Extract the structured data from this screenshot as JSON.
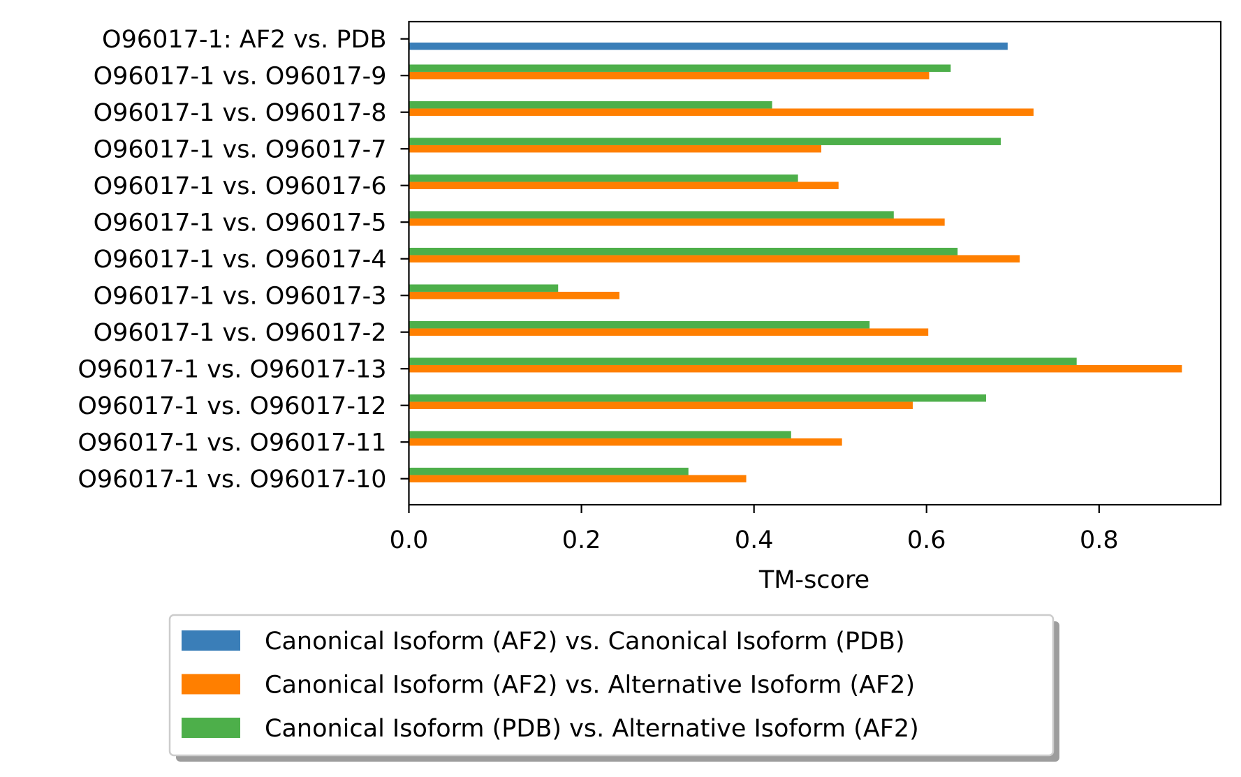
{
  "chart_data": {
    "type": "bar",
    "orientation": "horizontal",
    "title": "",
    "xlabel": "TM-score",
    "ylabel": "",
    "xlim": [
      0,
      0.941
    ],
    "xticks": [
      0.0,
      0.2,
      0.4,
      0.6,
      0.8
    ],
    "xtick_labels": [
      "0.0",
      "0.2",
      "0.4",
      "0.6",
      "0.8"
    ],
    "grid": false,
    "legend_placement": "below-center",
    "categories": [
      "O96017-1: AF2 vs. PDB",
      "O96017-1 vs. O96017-9",
      "O96017-1 vs. O96017-8",
      "O96017-1 vs. O96017-7",
      "O96017-1 vs. O96017-6",
      "O96017-1 vs. O96017-5",
      "O96017-1 vs. O96017-4",
      "O96017-1 vs. O96017-3",
      "O96017-1 vs. O96017-2",
      "O96017-1 vs. O96017-13",
      "O96017-1 vs. O96017-12",
      "O96017-1 vs. O96017-11",
      "O96017-1 vs. O96017-10"
    ],
    "series": [
      {
        "name": "Canonical Isoform (AF2) vs. Canonical Isoform (PDB)",
        "color": "#3a7eb8",
        "values": [
          0.694,
          null,
          null,
          null,
          null,
          null,
          null,
          null,
          null,
          null,
          null,
          null,
          null
        ]
      },
      {
        "name": "Canonical Isoform (AF2) vs. Alternative Isoform (AF2)",
        "color": "#ff7f00",
        "values": [
          null,
          0.603,
          0.724,
          0.478,
          0.498,
          0.621,
          0.708,
          0.244,
          0.602,
          0.896,
          0.584,
          0.502,
          0.391
        ]
      },
      {
        "name": "Canonical Isoform (PDB) vs. Alternative Isoform (AF2)",
        "color": "#4daf4a",
        "values": [
          null,
          0.628,
          0.421,
          0.686,
          0.451,
          0.562,
          0.636,
          0.173,
          0.534,
          0.774,
          0.669,
          0.443,
          0.324
        ]
      }
    ]
  }
}
